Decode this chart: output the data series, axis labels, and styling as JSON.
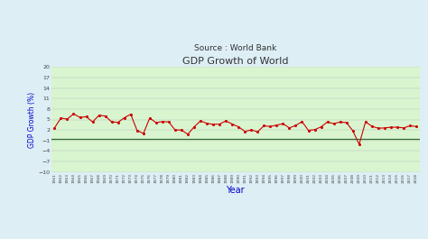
{
  "title": "GDP Growth of World",
  "subtitle": "Source : World Bank",
  "xlabel": "Year",
  "ylabel": "GDP Growth (%)",
  "background_color": "#d8f5d0",
  "outer_background": "#ddeef5",
  "line_color": "#cc0000",
  "hline_color": "#336633",
  "hline_value": -0.5,
  "ylim": [
    -10,
    20
  ],
  "yticks": [
    -10,
    -7,
    -4,
    -1,
    2,
    5,
    8,
    11,
    14,
    17,
    20
  ],
  "years": [
    1961,
    1962,
    1963,
    1964,
    1965,
    1966,
    1967,
    1968,
    1969,
    1970,
    1971,
    1972,
    1973,
    1974,
    1975,
    1976,
    1977,
    1978,
    1979,
    1980,
    1981,
    1982,
    1983,
    1984,
    1985,
    1986,
    1987,
    1988,
    1989,
    1990,
    1991,
    1992,
    1993,
    1994,
    1995,
    1996,
    1997,
    1998,
    1999,
    2000,
    2001,
    2002,
    2003,
    2004,
    2005,
    2006,
    2007,
    2008,
    2009,
    2010,
    2011,
    2012,
    2013,
    2014,
    2015,
    2016,
    2017,
    2018
  ],
  "values": [
    2.6,
    5.4,
    5.1,
    6.6,
    5.6,
    5.8,
    4.3,
    6.2,
    6.0,
    4.3,
    4.2,
    5.5,
    6.5,
    1.9,
    1.0,
    5.4,
    4.1,
    4.4,
    4.3,
    2.0,
    2.0,
    0.8,
    2.9,
    4.6,
    3.9,
    3.6,
    3.7,
    4.6,
    3.7,
    2.9,
    1.6,
    2.0,
    1.5,
    3.2,
    3.0,
    3.4,
    3.8,
    2.6,
    3.3,
    4.4,
    1.9,
    2.1,
    2.9,
    4.3,
    3.8,
    4.3,
    4.1,
    1.8,
    -2.1,
    4.3,
    3.1,
    2.5,
    2.6,
    2.8,
    2.8,
    2.6,
    3.2,
    3.0
  ],
  "title_fontsize": 8,
  "subtitle_fontsize": 6.5,
  "xlabel_fontsize": 7,
  "ylabel_fontsize": 5.5,
  "xtick_fontsize": 3.2,
  "ytick_fontsize": 4.5,
  "title_color": "#333333",
  "subtitle_color": "#333333",
  "axis_label_color": "#0000cc",
  "tick_color": "#444444",
  "grid_color": "#bbbbbb",
  "grid_linewidth": 0.3
}
